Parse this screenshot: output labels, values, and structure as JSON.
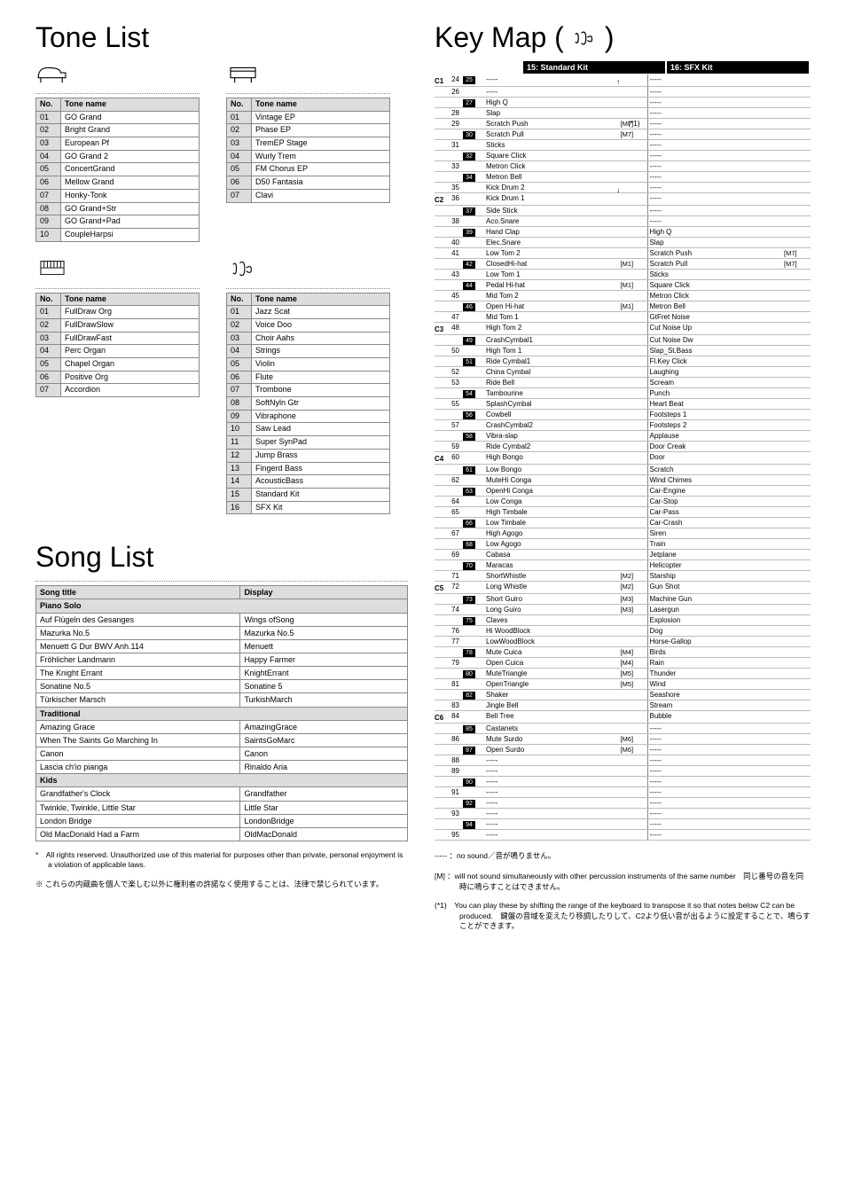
{
  "titles": {
    "tone_list": "Tone List",
    "song_list": "Song List",
    "key_map": "Key Map ("
  },
  "tone_headers": {
    "no": "No.",
    "name": "Tone name"
  },
  "tones_piano": [
    [
      "01",
      "GO Grand"
    ],
    [
      "02",
      "Bright Grand"
    ],
    [
      "03",
      "European Pf"
    ],
    [
      "04",
      "GO Grand 2"
    ],
    [
      "05",
      "ConcertGrand"
    ],
    [
      "06",
      "Mellow Grand"
    ],
    [
      "07",
      "Honky-Tonk"
    ],
    [
      "08",
      "GO Grand+Str"
    ],
    [
      "09",
      "GO Grand+Pad"
    ],
    [
      "10",
      "CoupleHarpsi"
    ]
  ],
  "tones_ep": [
    [
      "01",
      "Vintage EP"
    ],
    [
      "02",
      "Phase EP"
    ],
    [
      "03",
      "TremEP Stage"
    ],
    [
      "04",
      "Wurly Trem"
    ],
    [
      "05",
      "FM Chorus EP"
    ],
    [
      "06",
      "D50 Fantasia"
    ],
    [
      "07",
      "Clavi"
    ]
  ],
  "tones_organ": [
    [
      "01",
      "FullDraw Org"
    ],
    [
      "02",
      "FullDrawSlow"
    ],
    [
      "03",
      "FullDrawFast"
    ],
    [
      "04",
      "Perc Organ"
    ],
    [
      "05",
      "Chapel Organ"
    ],
    [
      "06",
      "Positive Org"
    ],
    [
      "07",
      "Accordion"
    ]
  ],
  "tones_other": [
    [
      "01",
      "Jazz Scat"
    ],
    [
      "02",
      "Voice Doo"
    ],
    [
      "03",
      "Choir Aahs"
    ],
    [
      "04",
      "Strings"
    ],
    [
      "05",
      "Violin"
    ],
    [
      "06",
      "Flute"
    ],
    [
      "07",
      "Trombone"
    ],
    [
      "08",
      "SoftNyln Gtr"
    ],
    [
      "09",
      "Vibraphone"
    ],
    [
      "10",
      "Saw Lead"
    ],
    [
      "11",
      "Super SynPad"
    ],
    [
      "12",
      "Jump Brass"
    ],
    [
      "13",
      "Fingerd Bass"
    ],
    [
      "14",
      "AcousticBass"
    ],
    [
      "15",
      "Standard Kit"
    ],
    [
      "16",
      "SFX Kit"
    ]
  ],
  "song_headers": {
    "title": "Song title",
    "display": "Display"
  },
  "songs": [
    {
      "section": "Piano Solo"
    },
    [
      "Auf Flügeln des Gesanges",
      "Wings ofSong"
    ],
    [
      "Mazurka No.5",
      "Mazurka No.5"
    ],
    [
      "Menuett G Dur BWV Anh.114",
      "Menuett"
    ],
    [
      "Fröhlicher Landmann",
      "Happy Farmer"
    ],
    [
      "The Knight Errant",
      "KnightErrant"
    ],
    [
      "Sonatine No.5",
      "Sonatine 5"
    ],
    [
      "Türkischer Marsch",
      "TurkishMarch"
    ],
    {
      "section": "Traditional"
    },
    [
      "Amazing Grace",
      "AmazingGrace"
    ],
    [
      "When The Saints Go Marching In",
      "SaintsGoMarc"
    ],
    [
      "Canon",
      "Canon"
    ],
    [
      "Lascia ch'io pianga",
      "Rinaldo Aria"
    ],
    {
      "section": "Kids"
    },
    [
      "Grandfather's Clock",
      "Grandfather"
    ],
    [
      "Twinkle, Twinkle, Little Star",
      "Little Star"
    ],
    [
      "London Bridge",
      "LondonBridge"
    ],
    [
      "Old MacDonald Had a Farm",
      "OldMacDonald"
    ]
  ],
  "song_footnotes": [
    "*　All rights reserved. Unauthorized use of this material for purposes other than private, personal enjoyment is a violation of applicable laws.",
    "※ これらの内蔵曲を個人で楽しむ以外に権利者の許諾なく使用することは、法律で禁じられています。"
  ],
  "keymap": {
    "col1": "15: Standard Kit",
    "col2": "16: SFX Kit",
    "star1": "(*1)",
    "octaves": [
      {
        "oct": "C1",
        "keys": [
          {
            "n": "24",
            "b": "25",
            "c1": "-----",
            "c2": "-----"
          },
          {
            "n": "26",
            "b": "27",
            "c1a": "-----",
            "c1": "High Q",
            "c2a": "-----",
            "c2": "-----"
          },
          {
            "n": "28",
            "c1": "Slap",
            "c2": "-----"
          },
          {
            "n": "29",
            "b": "30",
            "c1a": "Scratch Push",
            "t1a": "[M7]",
            "c1": "Scratch Pull",
            "t1": "[M7]",
            "c2a": "-----",
            "c2": "-----"
          },
          {
            "n": "31",
            "b": "32",
            "c1a": "Sticks",
            "c1": "Square Click",
            "c2a": "-----",
            "c2": "-----"
          },
          {
            "n": "33",
            "b": "34",
            "c1a": "Metron Click",
            "c1": "Metron Bell",
            "c2a": "-----",
            "c2": "-----"
          },
          {
            "n": "35",
            "c1": "Kick Drum 2",
            "c2": "-----"
          }
        ]
      },
      {
        "oct": "C2",
        "keys": [
          {
            "n": "36",
            "b": "37",
            "c1a": "Kick Drum 1",
            "c1": "Side Stick",
            "c2a": "-----",
            "c2": "-----"
          },
          {
            "n": "38",
            "b": "39",
            "c1a": "Aco.Snare",
            "c1": "Hand Clap",
            "c2a": "-----",
            "c2": "High Q"
          },
          {
            "n": "40",
            "c1": "Elec.Snare",
            "c2": "Slap"
          },
          {
            "n": "41",
            "b": "42",
            "c1a": "Low Tom 2",
            "c1": "ClosedHi-hat",
            "t1": "[M1]",
            "c2a": "Scratch Push",
            "t2a": "[M7]",
            "c2": "Scratch Pull",
            "t2": "[M7]"
          },
          {
            "n": "43",
            "b": "44",
            "c1a": "Low Tom 1",
            "c1": "Pedal Hi-hat",
            "t1": "[M1]",
            "c2a": "Sticks",
            "c2": "Square Click"
          },
          {
            "n": "45",
            "b": "46",
            "c1a": "Mid Tom 2",
            "c1": "Open Hi-hat",
            "t1": "[M1]",
            "c2a": "Metron Click",
            "c2": "Metron Bell"
          },
          {
            "n": "47",
            "c1": "Mid Tom 1",
            "c2": "GtFret Noise"
          }
        ]
      },
      {
        "oct": "C3",
        "keys": [
          {
            "n": "48",
            "b": "49",
            "c1a": "High Tom 2",
            "c1": "CrashCymbal1",
            "c2a": "Cut Noise Up",
            "c2": "Cut Noise Dw"
          },
          {
            "n": "50",
            "b": "51",
            "c1a": "High Tom 1",
            "c1": "Ride Cymbal1",
            "c2a": "Slap_St.Bass",
            "c2": "Fl.Key Click"
          },
          {
            "n": "52",
            "c1": "China Cymbal",
            "c2": "Laughing"
          },
          {
            "n": "53",
            "b": "54",
            "c1a": "Ride Bell",
            "c1": "Tambourine",
            "c2a": "Scream",
            "c2": "Punch"
          },
          {
            "n": "55",
            "b": "56",
            "c1a": "SplashCymbal",
            "c1": "Cowbell",
            "c2a": "Heart Beat",
            "c2": "Footsteps 1"
          },
          {
            "n": "57",
            "b": "58",
            "c1a": "CrashCymbal2",
            "c1": "Vibra-slap",
            "c2a": "Footsteps 2",
            "c2": "Applause"
          },
          {
            "n": "59",
            "c1": "Ride Cymbal2",
            "c2": "Door Creak"
          }
        ]
      },
      {
        "oct": "C4",
        "keys": [
          {
            "n": "60",
            "b": "61",
            "c1a": "High Bongo",
            "c1": "Low Bongo",
            "c2a": "Door",
            "c2": "Scratch"
          },
          {
            "n": "62",
            "b": "63",
            "c1a": "MuteHi Conga",
            "c1": "OpenHi Conga",
            "c2a": "Wind Chimes",
            "c2": "Car-Engine"
          },
          {
            "n": "64",
            "c1": "Low Conga",
            "c2": "Car-Stop"
          },
          {
            "n": "65",
            "b": "66",
            "c1a": "High Timbale",
            "c1": "Low Timbale",
            "c2a": "Car-Pass",
            "c2": "Car-Crash"
          },
          {
            "n": "67",
            "b": "68",
            "c1a": "High Agogo",
            "c1": "Low Agogo",
            "c2a": "Siren",
            "c2": "Train"
          },
          {
            "n": "69",
            "b": "70",
            "c1a": "Cabasa",
            "c1": "Maracas",
            "c2a": "Jetplane",
            "c2": "Helicopter"
          },
          {
            "n": "71",
            "c1": "ShortWhistle",
            "t1": "[M2]",
            "c2": "Starship"
          }
        ]
      },
      {
        "oct": "C5",
        "keys": [
          {
            "n": "72",
            "b": "73",
            "c1a": "Long Whistle",
            "t1a": "[M2]",
            "c1": "Short Guiro",
            "t1": "[M3]",
            "c2a": "Gun Shot",
            "c2": "Machine Gun"
          },
          {
            "n": "74",
            "b": "75",
            "c1a": "Long Guiro",
            "t1a": "[M3]",
            "c1": "Claves",
            "c2a": "Lasergun",
            "c2": "Explosion"
          },
          {
            "n": "76",
            "c1": "Hi WoodBlock",
            "c2": "Dog"
          },
          {
            "n": "77",
            "b": "78",
            "c1a": "LowWoodBlock",
            "c1": "Mute Cuica",
            "t1": "[M4]",
            "c2a": "Horse-Gallop",
            "c2": "Birds"
          },
          {
            "n": "79",
            "b": "80",
            "c1a": "Open Cuica",
            "t1a": "[M4]",
            "c1": "MuteTriangle",
            "t1": "[M5]",
            "c2a": "Rain",
            "c2": "Thunder"
          },
          {
            "n": "81",
            "b": "82",
            "c1a": "OpenTriangle",
            "t1a": "[M5]",
            "c1": "Shaker",
            "c2a": "Wind",
            "c2": "Seashore"
          },
          {
            "n": "83",
            "c1": "Jingle Bell",
            "c2": "Stream"
          }
        ]
      },
      {
        "oct": "C6",
        "keys": [
          {
            "n": "84",
            "b": "85",
            "c1a": "Bell Tree",
            "c1": "Castanets",
            "c2a": "Bubble",
            "c2": "-----"
          },
          {
            "n": "86",
            "b": "87",
            "c1a": "Mute Surdo",
            "t1a": "[M6]",
            "c1": "Open Surdo",
            "t1": "[M6]",
            "c2a": "-----",
            "c2": "-----"
          },
          {
            "n": "88",
            "c1": "-----",
            "c2": "-----"
          },
          {
            "n": "89",
            "b": "90",
            "c1a": "-----",
            "c1": "-----",
            "c2a": "-----",
            "c2": "-----"
          },
          {
            "n": "91",
            "b": "92",
            "c1a": "-----",
            "c1": "-----",
            "c2a": "-----",
            "c2": "-----"
          },
          {
            "n": "93",
            "b": "94",
            "c1a": "-----",
            "c1": "-----",
            "c2a": "-----",
            "c2": "-----"
          },
          {
            "n": "95",
            "c1": "-----",
            "c2": "-----"
          }
        ]
      }
    ],
    "footnotes": [
      "----- ：no sound／音が鳴りません。",
      "[M] ：will not sound simultaneously with other percussion instruments of the same number　同じ番号の音を同時に鳴らすことはできません。",
      "(*1)　You can play these by shifting the range of the keyboard to transpose it so that notes below C2 can be produced.　鍵盤の音域を変えたり移調したりして、C2より低い音が出るように設定することで、鳴らすことができます。"
    ]
  }
}
